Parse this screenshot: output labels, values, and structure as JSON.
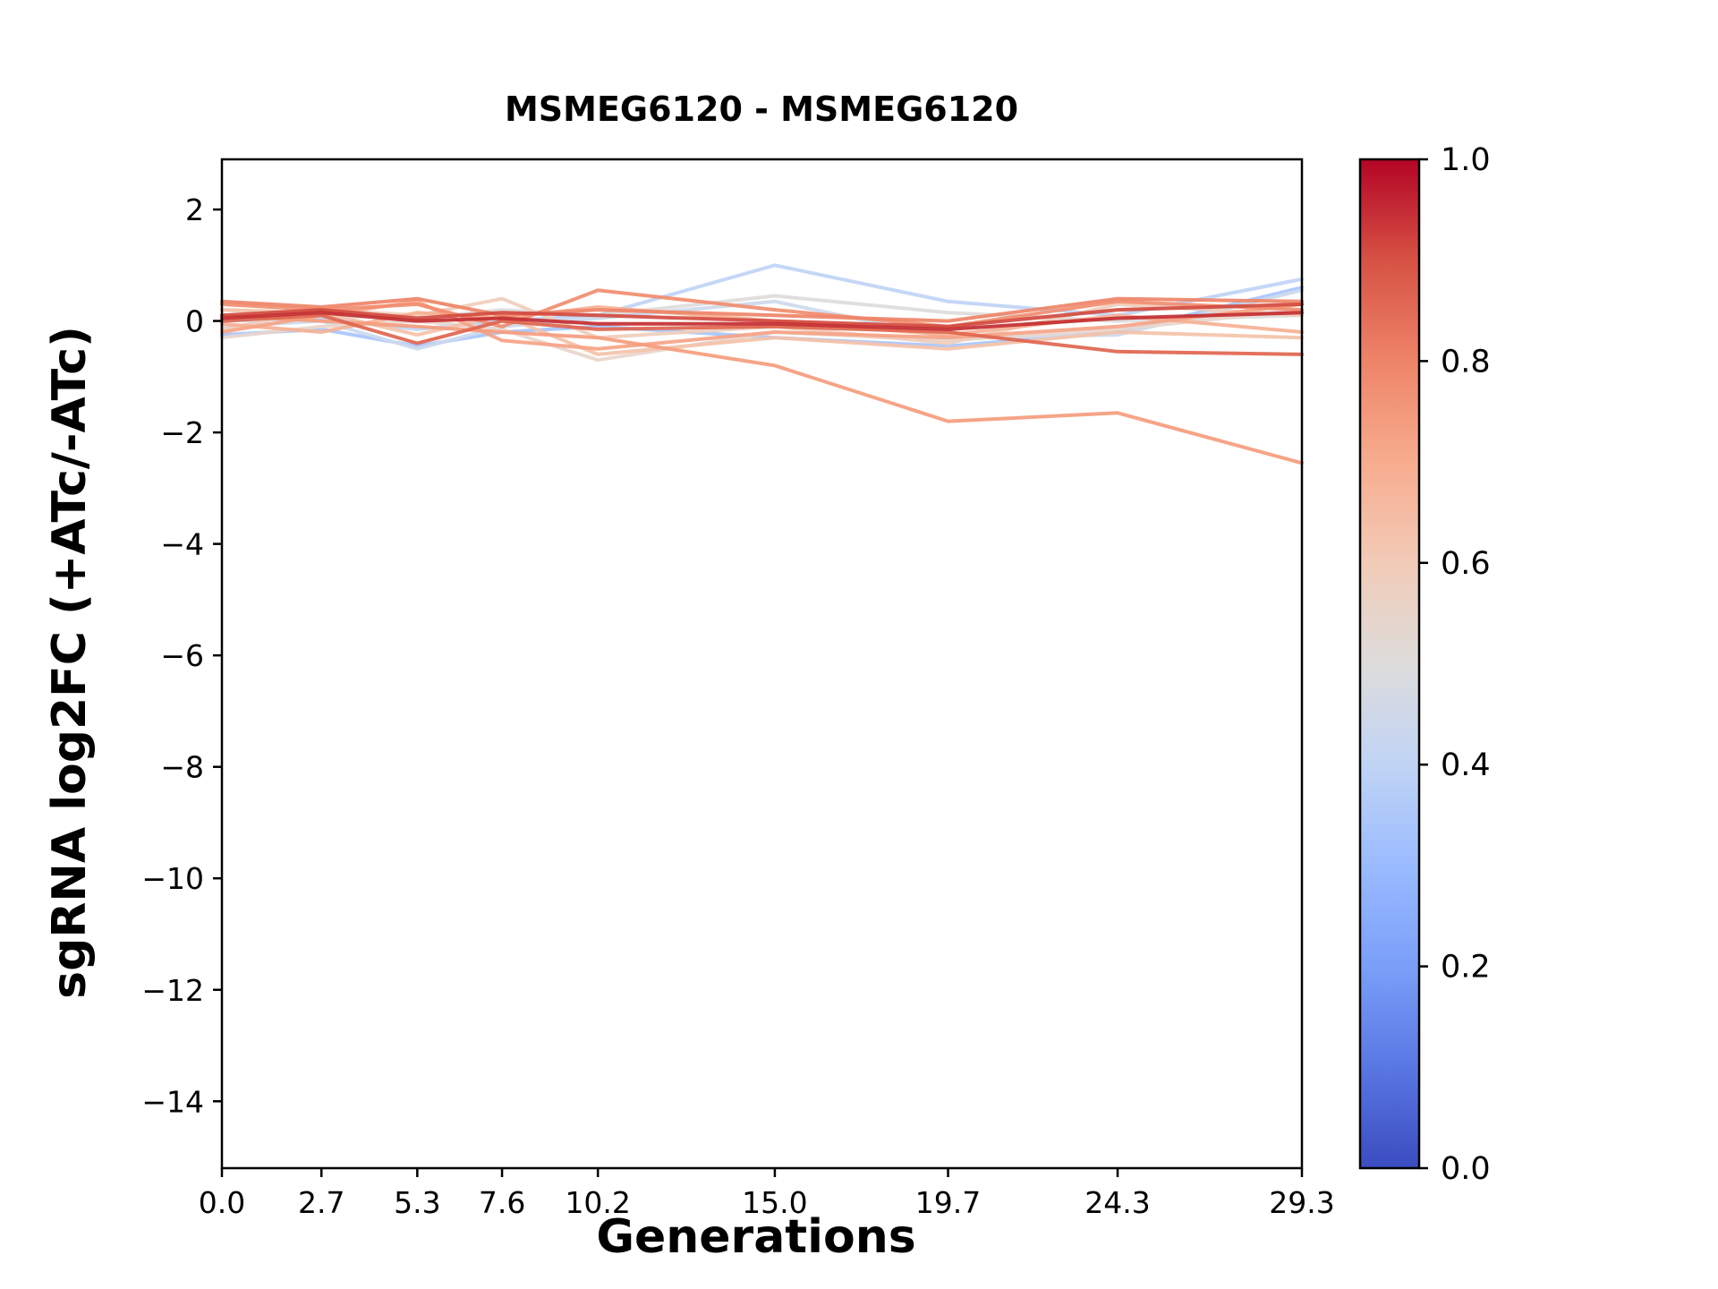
{
  "chart_data": {
    "type": "line",
    "title": "MSMEG6120 - MSMEG6120",
    "xlabel": "Generations",
    "ylabel": "sgRNA log2FC (+ATc/-ATc)",
    "x": [
      0.0,
      2.7,
      5.3,
      7.6,
      10.2,
      15.0,
      19.7,
      24.3,
      29.3
    ],
    "x_tick_labels": [
      "0.0",
      "2.7",
      "5.3",
      "7.6",
      "10.2",
      "15.0",
      "19.7",
      "24.3",
      "29.3"
    ],
    "xlim": [
      0,
      29.3
    ],
    "ylim": [
      -15.2,
      2.9
    ],
    "y_ticks": [
      2,
      0,
      -2,
      -4,
      -6,
      -8,
      -10,
      -12,
      -14
    ],
    "y_tick_labels": [
      "2",
      "0",
      "−2",
      "−4",
      "−6",
      "−8",
      "−10",
      "−12",
      "−14"
    ],
    "grid": false,
    "legend": "none",
    "series": [
      {
        "color_value": 0.35,
        "color": "#a7c5fe",
        "values": [
          -0.25,
          -0.15,
          -0.45,
          -0.2,
          -0.1,
          -0.3,
          -0.45,
          -0.2,
          0.6
        ]
      },
      {
        "color_value": 0.4,
        "color": "#c0d4f5",
        "values": [
          0.0,
          0.05,
          -0.15,
          0.0,
          0.1,
          1.0,
          0.35,
          0.1,
          0.75
        ]
      },
      {
        "color_value": 0.45,
        "color": "#cdd9ec",
        "values": [
          -0.1,
          0.0,
          -0.5,
          -0.1,
          0.05,
          0.35,
          -0.3,
          -0.25,
          0.55
        ]
      },
      {
        "color_value": 0.5,
        "color": "#dddcdb",
        "values": [
          0.2,
          0.1,
          0.05,
          0.2,
          0.1,
          0.45,
          0.15,
          0.0,
          0.1
        ]
      },
      {
        "color_value": 0.55,
        "color": "#e8d6cc",
        "values": [
          -0.3,
          -0.1,
          0.0,
          -0.15,
          -0.7,
          -0.2,
          -0.35,
          -0.15,
          0.2
        ]
      },
      {
        "color_value": 0.6,
        "color": "#f0cdbb",
        "values": [
          -0.15,
          0.2,
          0.1,
          0.4,
          -0.3,
          -0.1,
          -0.4,
          0.3,
          0.1
        ]
      },
      {
        "color_value": 0.65,
        "color": "#f4c2a9",
        "values": [
          0.2,
          0.15,
          -0.25,
          0.1,
          -0.6,
          -0.3,
          -0.5,
          -0.2,
          -0.3
        ]
      },
      {
        "color_value": 0.7,
        "color": "#f6b194",
        "values": [
          -0.05,
          -0.2,
          0.15,
          0.05,
          0.25,
          0.0,
          -0.25,
          0.1,
          -0.2
        ]
      },
      {
        "color_value": 0.72,
        "color": "#f6a385",
        "values": [
          -0.2,
          0.1,
          0.35,
          -0.35,
          -0.5,
          -0.2,
          -0.3,
          -0.1,
          0.3
        ]
      },
      {
        "color_value": 0.75,
        "color": "#f59c7d",
        "values": [
          0.1,
          0.0,
          -0.1,
          -0.2,
          -0.3,
          -0.8,
          -1.8,
          -1.65,
          -2.55
        ]
      },
      {
        "color_value": 0.78,
        "color": "#f18d6f",
        "values": [
          0.3,
          0.2,
          0.3,
          -0.1,
          0.55,
          0.2,
          -0.1,
          0.35,
          0.2
        ]
      },
      {
        "color_value": 0.8,
        "color": "#ee8468",
        "values": [
          0.35,
          0.25,
          0.4,
          0.1,
          0.2,
          0.1,
          0.0,
          0.4,
          0.35
        ]
      },
      {
        "color_value": 0.85,
        "color": "#e0654f",
        "values": [
          0.0,
          0.1,
          -0.4,
          0.0,
          -0.15,
          -0.1,
          -0.2,
          -0.55,
          -0.6
        ]
      },
      {
        "color_value": 0.9,
        "color": "#d24b40",
        "values": [
          0.1,
          0.2,
          0.05,
          0.15,
          0.1,
          0.0,
          -0.1,
          0.2,
          0.3
        ]
      },
      {
        "color_value": 0.95,
        "color": "#c32e31",
        "values": [
          0.05,
          0.15,
          0.0,
          0.05,
          -0.05,
          -0.05,
          -0.15,
          0.05,
          0.15
        ]
      }
    ],
    "colorbar": {
      "colormap": "coolwarm",
      "ticks": [
        0.0,
        0.2,
        0.4,
        0.6,
        0.8,
        1.0
      ],
      "tick_labels": [
        "0.0",
        "0.2",
        "0.4",
        "0.6",
        "0.8",
        "1.0"
      ],
      "gradient_stops": [
        {
          "pos": 0.0,
          "color": "#3b4cc0"
        },
        {
          "pos": 0.1,
          "color": "#5977e3"
        },
        {
          "pos": 0.2,
          "color": "#7b9ff9"
        },
        {
          "pos": 0.3,
          "color": "#9abbff"
        },
        {
          "pos": 0.4,
          "color": "#c0d4f5"
        },
        {
          "pos": 0.5,
          "color": "#dddcdb"
        },
        {
          "pos": 0.6,
          "color": "#f2cbb7"
        },
        {
          "pos": 0.7,
          "color": "#f7ac8e"
        },
        {
          "pos": 0.8,
          "color": "#ee8468"
        },
        {
          "pos": 0.9,
          "color": "#d65244"
        },
        {
          "pos": 1.0,
          "color": "#b40426"
        }
      ]
    }
  }
}
